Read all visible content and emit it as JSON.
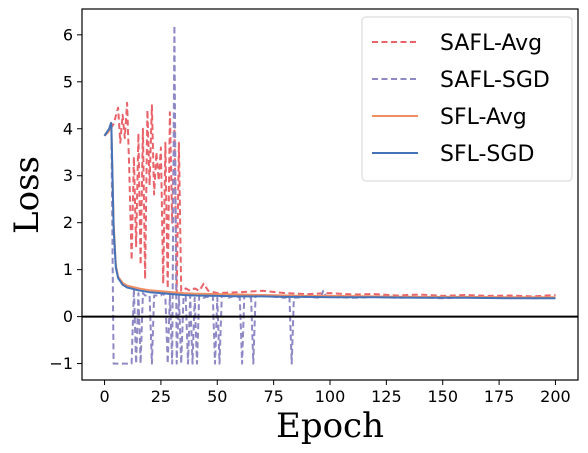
{
  "chart_data": {
    "type": "line",
    "xlabel": "Epoch",
    "ylabel": "Loss",
    "xlim": [
      -10,
      210
    ],
    "ylim": [
      -1.35,
      6.55
    ],
    "xticks": [
      0,
      25,
      50,
      75,
      100,
      125,
      150,
      175,
      200
    ],
    "yticks": [
      -1,
      0,
      1,
      2,
      3,
      4,
      5,
      6
    ],
    "hline": 0,
    "grid": false,
    "legend_position": "top-right",
    "series": [
      {
        "name": "SAFL-Avg",
        "color": "#e8636a",
        "style": "dashed",
        "points": [
          [
            0,
            3.85
          ],
          [
            2,
            3.95
          ],
          [
            4,
            4.1
          ],
          [
            6,
            4.45
          ],
          [
            7,
            3.7
          ],
          [
            8,
            4.3
          ],
          [
            9,
            3.8
          ],
          [
            10,
            4.55
          ],
          [
            11,
            3.1
          ],
          [
            12,
            1.2
          ],
          [
            13,
            3.4
          ],
          [
            14,
            1.5
          ],
          [
            15,
            3.9
          ],
          [
            16,
            1.1
          ],
          [
            17,
            4.0
          ],
          [
            18,
            0.8
          ],
          [
            19,
            4.4
          ],
          [
            20,
            2.8
          ],
          [
            21,
            4.5
          ],
          [
            22,
            2.6
          ],
          [
            23,
            3.5
          ],
          [
            24,
            2.9
          ],
          [
            25,
            3.6
          ],
          [
            26,
            0.7
          ],
          [
            27,
            3.7
          ],
          [
            28,
            0.6
          ],
          [
            29,
            4.35
          ],
          [
            30,
            2.0
          ],
          [
            31,
            4.0
          ],
          [
            32,
            0.5
          ],
          [
            33,
            3.7
          ],
          [
            34,
            0.55
          ],
          [
            36,
            0.6
          ],
          [
            38,
            0.55
          ],
          [
            40,
            0.6
          ],
          [
            42,
            0.55
          ],
          [
            44,
            0.7
          ],
          [
            46,
            0.55
          ],
          [
            50,
            0.5
          ],
          [
            60,
            0.52
          ],
          [
            70,
            0.55
          ],
          [
            80,
            0.5
          ],
          [
            90,
            0.48
          ],
          [
            100,
            0.5
          ],
          [
            110,
            0.47
          ],
          [
            120,
            0.48
          ],
          [
            130,
            0.45
          ],
          [
            140,
            0.47
          ],
          [
            150,
            0.44
          ],
          [
            160,
            0.46
          ],
          [
            170,
            0.44
          ],
          [
            180,
            0.45
          ],
          [
            190,
            0.43
          ],
          [
            200,
            0.46
          ]
        ]
      },
      {
        "name": "SAFL-SGD",
        "color": "#8e88c4",
        "style": "dashed",
        "points": [
          [
            0,
            3.85
          ],
          [
            2,
            4.0
          ],
          [
            3,
            4.15
          ],
          [
            4,
            -1.0
          ],
          [
            5,
            -1.0
          ],
          [
            8,
            -1.0
          ],
          [
            9,
            -1.0
          ],
          [
            10,
            -1.0
          ],
          [
            12,
            -1.0
          ],
          [
            13,
            0.6
          ],
          [
            14,
            -1.0
          ],
          [
            15,
            0.5
          ],
          [
            16,
            -1.0
          ],
          [
            17,
            0.5
          ],
          [
            18,
            0.45
          ],
          [
            20,
            0.45
          ],
          [
            21,
            -1.0
          ],
          [
            22,
            0.45
          ],
          [
            25,
            0.45
          ],
          [
            26,
            0.5
          ],
          [
            27,
            0.4
          ],
          [
            28,
            -1.0
          ],
          [
            29,
            0.45
          ],
          [
            30,
            -1.0
          ],
          [
            31,
            6.2
          ],
          [
            32,
            -1.0
          ],
          [
            33,
            0.45
          ],
          [
            34,
            -1.0
          ],
          [
            35,
            0.4
          ],
          [
            36,
            0.45
          ],
          [
            37,
            -1.0
          ],
          [
            38,
            0.45
          ],
          [
            39,
            -1.0
          ],
          [
            40,
            0.4
          ],
          [
            41,
            -1.0
          ],
          [
            42,
            0.45
          ],
          [
            44,
            0.4
          ],
          [
            48,
            0.45
          ],
          [
            49,
            -1.0
          ],
          [
            50,
            0.4
          ],
          [
            51,
            -1.0
          ],
          [
            52,
            0.45
          ],
          [
            55,
            0.4
          ],
          [
            58,
            0.45
          ],
          [
            60,
            0.4
          ],
          [
            61,
            -1.0
          ],
          [
            62,
            0.45
          ],
          [
            65,
            0.4
          ],
          [
            66,
            -1.0
          ],
          [
            67,
            0.45
          ],
          [
            70,
            0.45
          ],
          [
            80,
            0.4
          ],
          [
            82,
            0.45
          ],
          [
            83,
            -1.0
          ],
          [
            84,
            0.4
          ],
          [
            90,
            0.42
          ],
          [
            96,
            0.4
          ],
          [
            97,
            0.55
          ],
          [
            98,
            0.45
          ],
          [
            100,
            0.42
          ],
          [
            110,
            0.4
          ],
          [
            120,
            0.42
          ],
          [
            130,
            0.4
          ],
          [
            140,
            0.41
          ],
          [
            150,
            0.39
          ],
          [
            160,
            0.41
          ],
          [
            170,
            0.4
          ],
          [
            180,
            0.41
          ],
          [
            190,
            0.39
          ],
          [
            200,
            0.4
          ]
        ]
      },
      {
        "name": "SFL-Avg",
        "color": "#f08e62",
        "style": "solid",
        "points": [
          [
            0,
            3.85
          ],
          [
            2,
            3.95
          ],
          [
            3,
            4.1
          ],
          [
            4,
            2.0
          ],
          [
            5,
            1.1
          ],
          [
            6,
            0.85
          ],
          [
            8,
            0.72
          ],
          [
            10,
            0.66
          ],
          [
            15,
            0.6
          ],
          [
            20,
            0.56
          ],
          [
            25,
            0.54
          ],
          [
            30,
            0.52
          ],
          [
            35,
            0.5
          ],
          [
            40,
            0.49
          ],
          [
            50,
            0.48
          ],
          [
            60,
            0.47
          ],
          [
            70,
            0.46
          ],
          [
            80,
            0.45
          ],
          [
            90,
            0.44
          ],
          [
            100,
            0.44
          ],
          [
            120,
            0.43
          ],
          [
            140,
            0.42
          ],
          [
            160,
            0.42
          ],
          [
            180,
            0.41
          ],
          [
            200,
            0.41
          ]
        ]
      },
      {
        "name": "SFL-SGD",
        "color": "#4472b8",
        "style": "solid",
        "points": [
          [
            0,
            3.85
          ],
          [
            2,
            4.0
          ],
          [
            3,
            4.12
          ],
          [
            4,
            1.9
          ],
          [
            5,
            1.05
          ],
          [
            6,
            0.82
          ],
          [
            8,
            0.68
          ],
          [
            10,
            0.62
          ],
          [
            15,
            0.56
          ],
          [
            20,
            0.52
          ],
          [
            25,
            0.5
          ],
          [
            30,
            0.48
          ],
          [
            35,
            0.46
          ],
          [
            40,
            0.45
          ],
          [
            50,
            0.44
          ],
          [
            60,
            0.43
          ],
          [
            70,
            0.43
          ],
          [
            80,
            0.42
          ],
          [
            90,
            0.42
          ],
          [
            100,
            0.41
          ],
          [
            120,
            0.41
          ],
          [
            140,
            0.4
          ],
          [
            160,
            0.4
          ],
          [
            180,
            0.39
          ],
          [
            200,
            0.39
          ]
        ]
      }
    ]
  }
}
